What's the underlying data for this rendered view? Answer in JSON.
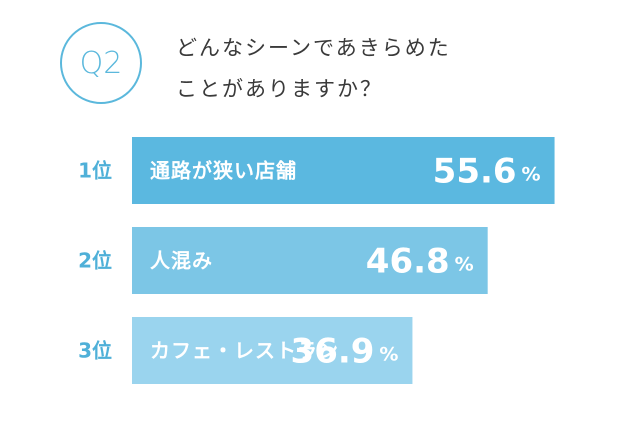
{
  "question": {
    "badge": "Q2",
    "line1": "どんなシーンであきらめた",
    "line2": "ことがありますか？"
  },
  "chart_data": {
    "type": "bar",
    "orientation": "horizontal",
    "categories": [
      "通路が狭い店舗",
      "人混み",
      "カフェ・レストラン"
    ],
    "ranks": [
      "1位",
      "2位",
      "3位"
    ],
    "values": [
      55.6,
      46.8,
      36.9
    ],
    "value_labels": [
      "55.6",
      "46.8",
      "36.9"
    ],
    "unit": "%",
    "xlim": [
      0,
      100
    ],
    "colors": {
      "rank": "#4fb0d8",
      "bars": [
        "#5bb8e0",
        "#7cc6e6",
        "#9ad4ee"
      ],
      "text": "#ffffff",
      "accent": "#5bb8dc"
    }
  }
}
